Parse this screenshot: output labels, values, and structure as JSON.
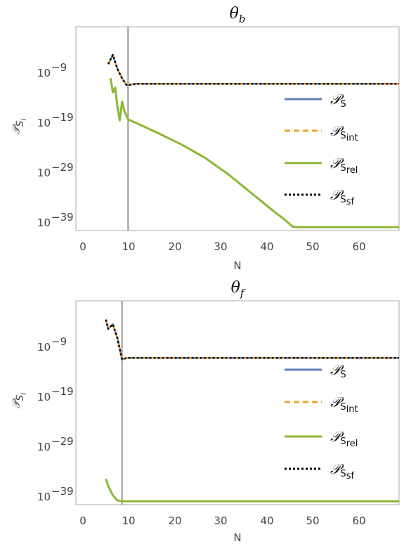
{
  "chart_data": [
    {
      "type": "line",
      "title": "θ",
      "title_sub": "b",
      "xlabel": "N",
      "ylabel": "𝒫",
      "ylabel_sub": "S",
      "ylabel_subsub": "i",
      "xlim": [
        -3,
        67
      ],
      "ylim_log10": [
        -40.5,
        3
      ],
      "yscale": "log",
      "x_ticks": [
        "0",
        "10",
        "20",
        "30",
        "40",
        "50",
        "60"
      ],
      "y_ticks": [
        "10",
        "10",
        "10",
        "10"
      ],
      "y_tick_exponents": [
        "−9",
        "−19",
        "−29",
        "−39"
      ],
      "vline_x": 8.3,
      "legend_position": "center-right",
      "series": [
        {
          "name": "𝒫",
          "name_sub": "S",
          "name_subsub": "",
          "color": "#5b7fb7",
          "dash": "solid",
          "x": [
            4,
            5,
            6,
            7,
            8,
            10,
            20,
            30,
            40,
            50,
            60,
            67
          ],
          "log10_y": [
            -5.0,
            -3.0,
            -6.0,
            -8.0,
            -9.5,
            -9.2,
            -9.2,
            -9.2,
            -9.2,
            -9.2,
            -9.2,
            -9.2
          ]
        },
        {
          "name": "𝒫",
          "name_sub": "S",
          "name_subsub": "int",
          "color": "#f0a030",
          "dash": "dashed",
          "x": [
            4,
            5,
            6,
            7,
            8,
            10,
            20,
            30,
            40,
            50,
            60,
            67
          ],
          "log10_y": [
            -5.0,
            -3.0,
            -6.0,
            -8.0,
            -9.5,
            -9.2,
            -9.2,
            -9.2,
            -9.2,
            -9.2,
            -9.2,
            -9.2
          ]
        },
        {
          "name": "𝒫",
          "name_sub": "S",
          "name_subsub": "rel",
          "color": "#8ab833",
          "dash": "solid",
          "x": [
            4.5,
            5,
            5.5,
            6,
            6.5,
            7,
            7.5,
            8.3,
            10,
            15,
            20,
            25,
            30,
            35,
            40,
            42,
            44,
            45,
            50,
            55,
            60,
            67
          ],
          "log10_y": [
            -8.0,
            -11.0,
            -10.0,
            -14.0,
            -17.0,
            -13.0,
            -15.0,
            -16.8,
            -17.5,
            -19.8,
            -22.2,
            -25.0,
            -28.5,
            -32.5,
            -36.5,
            -38.0,
            -39.7,
            -39.8,
            -39.8,
            -39.8,
            -39.8,
            -39.8
          ]
        },
        {
          "name": "𝒫",
          "name_sub": "S",
          "name_subsub": "sf",
          "color": "#000000",
          "dash": "dotted",
          "x": [
            4,
            5,
            6,
            7,
            8,
            10,
            20,
            30,
            40,
            50,
            60,
            67
          ],
          "log10_y": [
            -5.0,
            -3.0,
            -6.0,
            -8.0,
            -9.5,
            -9.2,
            -9.2,
            -9.2,
            -9.2,
            -9.2,
            -9.2,
            -9.2
          ]
        }
      ]
    },
    {
      "type": "line",
      "title": "θ",
      "title_sub": "f",
      "xlabel": "N",
      "ylabel": "𝒫",
      "ylabel_sub": "S",
      "ylabel_subsub": "i",
      "xlim": [
        -3,
        67
      ],
      "ylim_log10": [
        -40.5,
        3
      ],
      "yscale": "log",
      "x_ticks": [
        "0",
        "10",
        "20",
        "30",
        "40",
        "50",
        "60"
      ],
      "y_ticks": [
        "10",
        "10",
        "10",
        "10"
      ],
      "y_tick_exponents": [
        "−9",
        "−19",
        "−29",
        "−39"
      ],
      "vline_x": 7.0,
      "legend_position": "center-right",
      "series": [
        {
          "name": "𝒫",
          "name_sub": "S",
          "name_subsub": "",
          "color": "#5b7fb7",
          "dash": "solid",
          "x": [
            3.5,
            4,
            5,
            6,
            7,
            8,
            10,
            20,
            30,
            40,
            50,
            60,
            67
          ],
          "log10_y": [
            -1.0,
            -3.0,
            -2.0,
            -5.0,
            -9.5,
            -9.2,
            -9.2,
            -9.2,
            -9.2,
            -9.2,
            -9.2,
            -9.2,
            -9.2
          ]
        },
        {
          "name": "𝒫",
          "name_sub": "S",
          "name_subsub": "int",
          "color": "#f0a030",
          "dash": "dashed",
          "x": [
            3.5,
            4,
            5,
            6,
            7,
            8,
            10,
            20,
            30,
            40,
            50,
            60,
            67
          ],
          "log10_y": [
            -1.0,
            -3.0,
            -2.0,
            -5.0,
            -9.5,
            -9.2,
            -9.2,
            -9.2,
            -9.2,
            -9.2,
            -9.2,
            -9.2,
            -9.2
          ]
        },
        {
          "name": "𝒫",
          "name_sub": "S",
          "name_subsub": "rel",
          "color": "#8ab833",
          "dash": "solid",
          "x": [
            3.5,
            4,
            5,
            6,
            7,
            10,
            20,
            30,
            40,
            50,
            60,
            67
          ],
          "log10_y": [
            -35.0,
            -36.5,
            -38.5,
            -39.6,
            -39.8,
            -39.8,
            -39.8,
            -39.8,
            -39.8,
            -39.8,
            -39.8,
            -39.8
          ]
        },
        {
          "name": "𝒫",
          "name_sub": "S",
          "name_subsub": "sf",
          "color": "#000000",
          "dash": "dotted",
          "x": [
            3.5,
            4,
            5,
            6,
            7,
            8,
            10,
            20,
            30,
            40,
            50,
            60,
            67
          ],
          "log10_y": [
            -1.0,
            -3.0,
            -2.0,
            -5.0,
            -9.5,
            -9.2,
            -9.2,
            -9.2,
            -9.2,
            -9.2,
            -9.2,
            -9.2,
            -9.2
          ]
        }
      ]
    }
  ]
}
